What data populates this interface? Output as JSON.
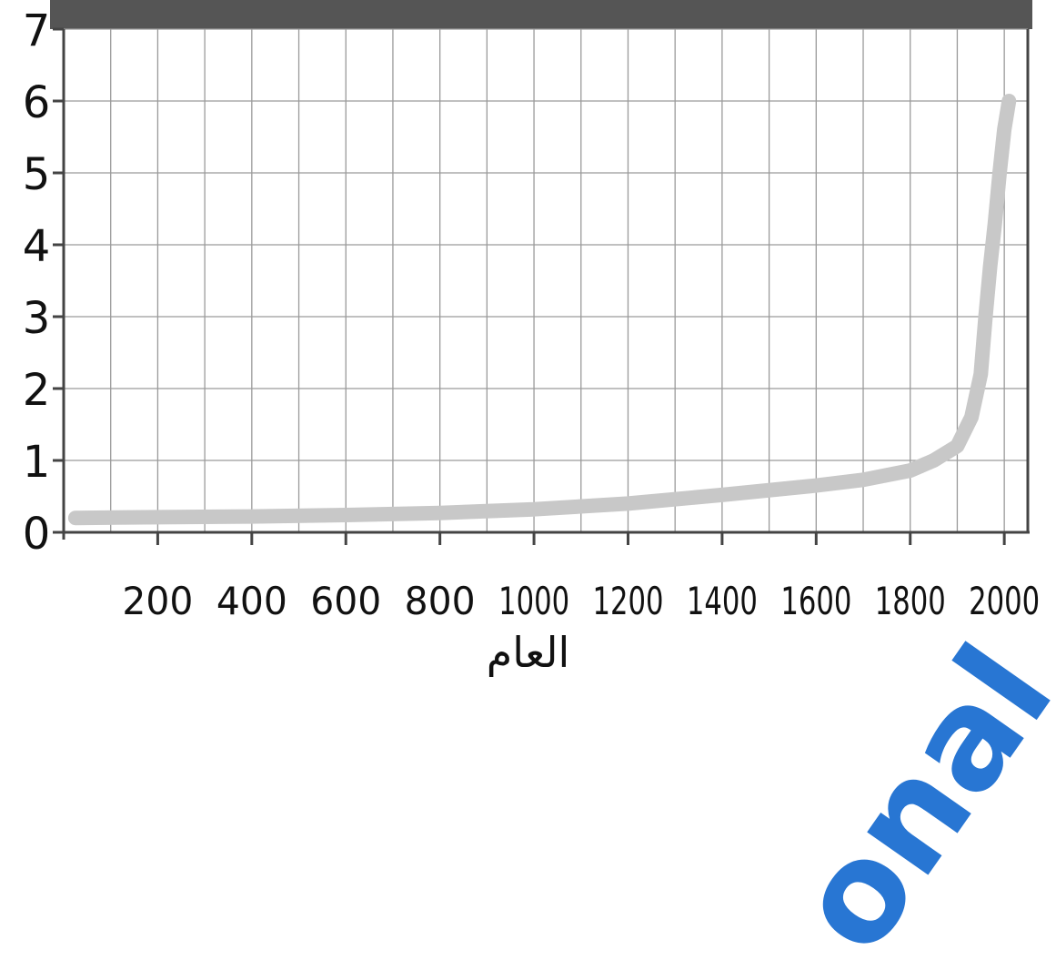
{
  "colors": {
    "header_band": "#555555",
    "grid": "#9a9a9a",
    "axis": "#444444",
    "curve": "#c8c8c8",
    "text": "#111111",
    "watermark": "#1d6fd1"
  },
  "chart_data": {
    "type": "line",
    "xlabel": "العام",
    "ylabel": "",
    "xlim": [
      0,
      2050
    ],
    "ylim": [
      0,
      7
    ],
    "x_ticks": [
      200,
      400,
      600,
      800,
      1000,
      1200,
      1400,
      1600,
      1800,
      2000
    ],
    "y_ticks": [
      0,
      1,
      2,
      3,
      4,
      5,
      6,
      7
    ],
    "grid": true,
    "series": [
      {
        "x": [
          25,
          200,
          400,
          600,
          800,
          1000,
          1200,
          1400,
          1600,
          1700,
          1800,
          1850,
          1900,
          1930,
          1950,
          1960,
          1970,
          1980,
          1990,
          2000,
          2010
        ],
        "values": [
          0.2,
          0.21,
          0.22,
          0.24,
          0.27,
          0.32,
          0.4,
          0.52,
          0.65,
          0.73,
          0.86,
          1.0,
          1.2,
          1.6,
          2.2,
          3.0,
          3.7,
          4.3,
          5.0,
          5.6,
          6.0
        ]
      }
    ]
  },
  "watermark_text": "onal"
}
